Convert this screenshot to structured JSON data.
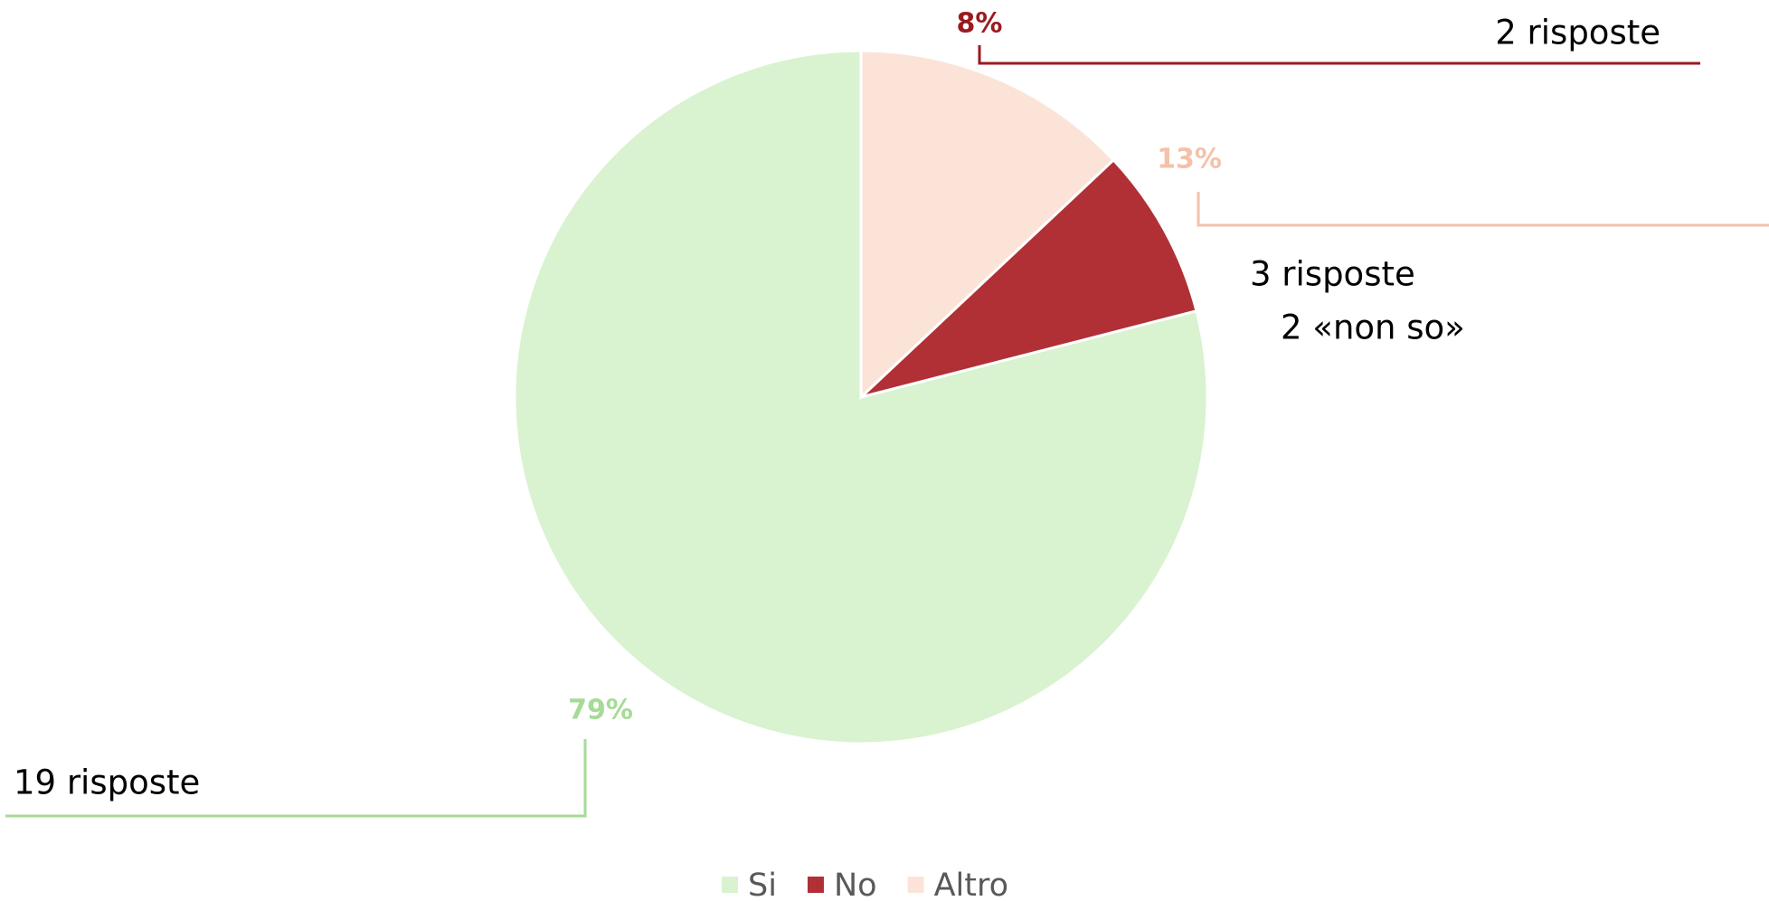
{
  "chart_data": {
    "type": "pie",
    "categories": [
      "Si",
      "No",
      "Altro"
    ],
    "values": [
      79,
      8,
      13
    ],
    "value_labels": [
      "79%",
      "8%",
      "13%"
    ],
    "colors": [
      "#d9f2d0",
      "#b03035",
      "#fce3d8"
    ],
    "label_colors": [
      "#a6db96",
      "#9a1a1f",
      "#f5c1aa"
    ],
    "direction": "counterclockwise",
    "legend": "bottom",
    "annotations": [
      "19 risposte",
      "2 risposte",
      "3 risposte",
      "2 «non so»"
    ]
  }
}
